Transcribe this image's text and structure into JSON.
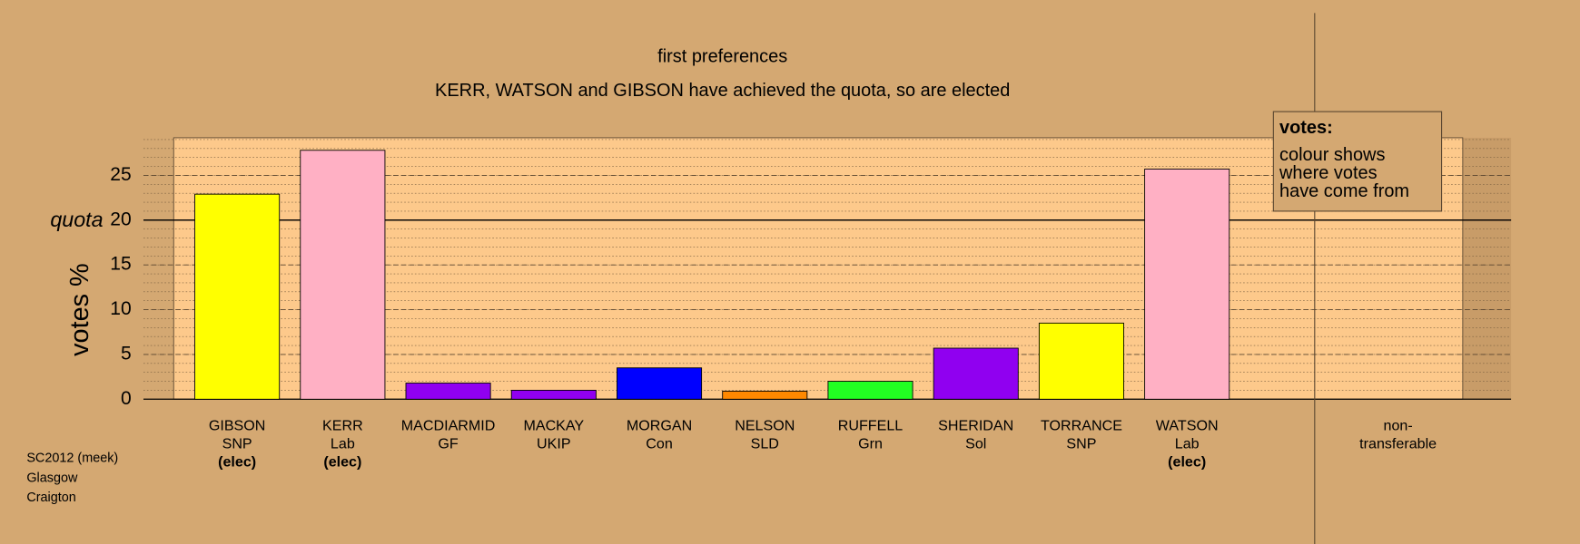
{
  "chart_data": {
    "type": "bar",
    "title": "first preferences",
    "subtitle": "KERR, WATSON and GIBSON have achieved the quota, so are elected",
    "y_label": "votes %",
    "categories": [
      [
        "GIBSON",
        "SNP",
        "(elec)"
      ],
      [
        "KERR",
        "Lab",
        "(elec)"
      ],
      [
        "MACDIARMID",
        "GF"
      ],
      [
        "MACKAY",
        "UKIP"
      ],
      [
        "MORGAN",
        "Con"
      ],
      [
        "NELSON",
        "SLD"
      ],
      [
        "RUFFELL",
        "Grn"
      ],
      [
        "SHERIDAN",
        "Sol"
      ],
      [
        "TORRANCE",
        "SNP"
      ],
      [
        "WATSON",
        "Lab",
        "(elec)"
      ],
      [
        "non-",
        "transferable"
      ]
    ],
    "values": [
      22.9,
      27.8,
      1.8,
      1.0,
      3.5,
      0.9,
      2.0,
      5.7,
      8.5,
      25.7,
      0
    ],
    "colors": [
      "#ffff00",
      "#ffb0c4",
      "#9000f0",
      "#9000f0",
      "#0000ff",
      "#ff8800",
      "#22ff22",
      "#9000f0",
      "#ffff00",
      "#ffb0c4",
      null
    ],
    "ylim": [
      0,
      29.2
    ],
    "yticks": [
      0,
      5,
      10,
      15,
      20,
      25
    ],
    "quota": {
      "value": 20,
      "label": "quota"
    },
    "legend": {
      "title": "votes:",
      "lines": [
        "colour shows",
        "where votes",
        "have come from"
      ]
    },
    "notes": [
      "SC2012 (meek)",
      "Glasgow",
      "Craigton"
    ]
  }
}
